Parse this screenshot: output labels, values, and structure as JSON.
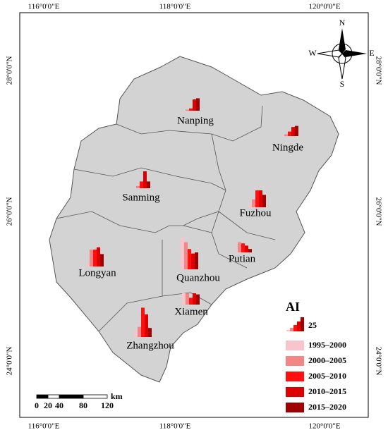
{
  "frame": {
    "top_labels": [
      "116°0'0\"E",
      "118°0'0\"E",
      "120°0'0\"E"
    ],
    "bottom_labels": [
      "116°0'0\"E",
      "118°0'0\"E",
      "120°0'0\"E"
    ],
    "left_labels": [
      "28°0'0\"N",
      "26°0'0\"N",
      "24°0'0\"N"
    ],
    "right_labels": [
      "28°0'0\"N",
      "26°0'0\"N",
      "24°0'0\"N"
    ]
  },
  "compass": {
    "north": "N",
    "south": "S",
    "east": "E",
    "west": "W"
  },
  "cities": [
    {
      "name": "Nanping",
      "values": [
        1,
        2,
        4,
        20,
        22
      ]
    },
    {
      "name": "Ningde",
      "values": [
        2,
        3,
        8,
        16,
        18
      ]
    },
    {
      "name": "Sanming",
      "values": [
        0,
        4,
        12,
        30,
        12
      ]
    },
    {
      "name": "Fuzhou",
      "values": [
        6,
        14,
        30,
        30,
        22
      ]
    },
    {
      "name": "Putian",
      "values": [
        2,
        18,
        16,
        12,
        6
      ]
    },
    {
      "name": "Longyan",
      "values": [
        4,
        30,
        30,
        34,
        22
      ]
    },
    {
      "name": "Quanzhou",
      "values": [
        56,
        48,
        36,
        28,
        30
      ]
    },
    {
      "name": "Xiamen",
      "values": [
        20,
        20,
        12,
        20,
        18
      ]
    },
    {
      "name": "Zhangzhou",
      "values": [
        10,
        18,
        52,
        40,
        16
      ]
    }
  ],
  "legend": {
    "title": "AI",
    "scale_value": 25,
    "items": [
      {
        "label": "1995–2000",
        "color": "#f9c4cc"
      },
      {
        "label": "2000–2005",
        "color": "#f48585"
      },
      {
        "label": "2005–2010",
        "color": "#ff1010"
      },
      {
        "label": "2010–2015",
        "color": "#dd0000"
      },
      {
        "label": "2015–2020",
        "color": "#a00000"
      }
    ]
  },
  "scale_bar": {
    "labels": [
      "0",
      "20",
      "40",
      "80",
      "120"
    ],
    "unit": "km"
  }
}
